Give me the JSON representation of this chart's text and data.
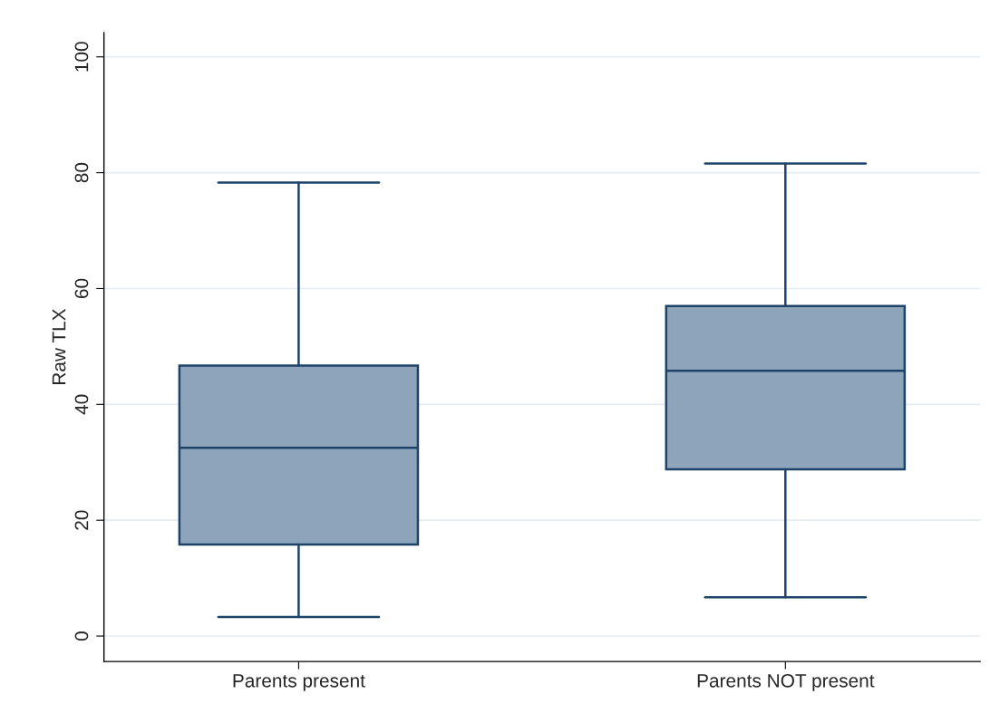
{
  "chart_data": {
    "type": "box",
    "ylabel": "Raw TLX",
    "categories": [
      "Parents present",
      "Parents NOT present"
    ],
    "boxes": [
      {
        "low": 3.3,
        "q1": 15.8,
        "median": 32.5,
        "q3": 46.7,
        "high": 78.3
      },
      {
        "low": 6.7,
        "q1": 28.8,
        "median": 45.8,
        "q3": 57.0,
        "high": 81.6
      }
    ],
    "color": "#8ea4bb",
    "ylim": [
      -4.4,
      104.2
    ],
    "yticks": [
      0,
      20,
      40,
      60,
      80,
      100
    ],
    "grid": "y"
  }
}
